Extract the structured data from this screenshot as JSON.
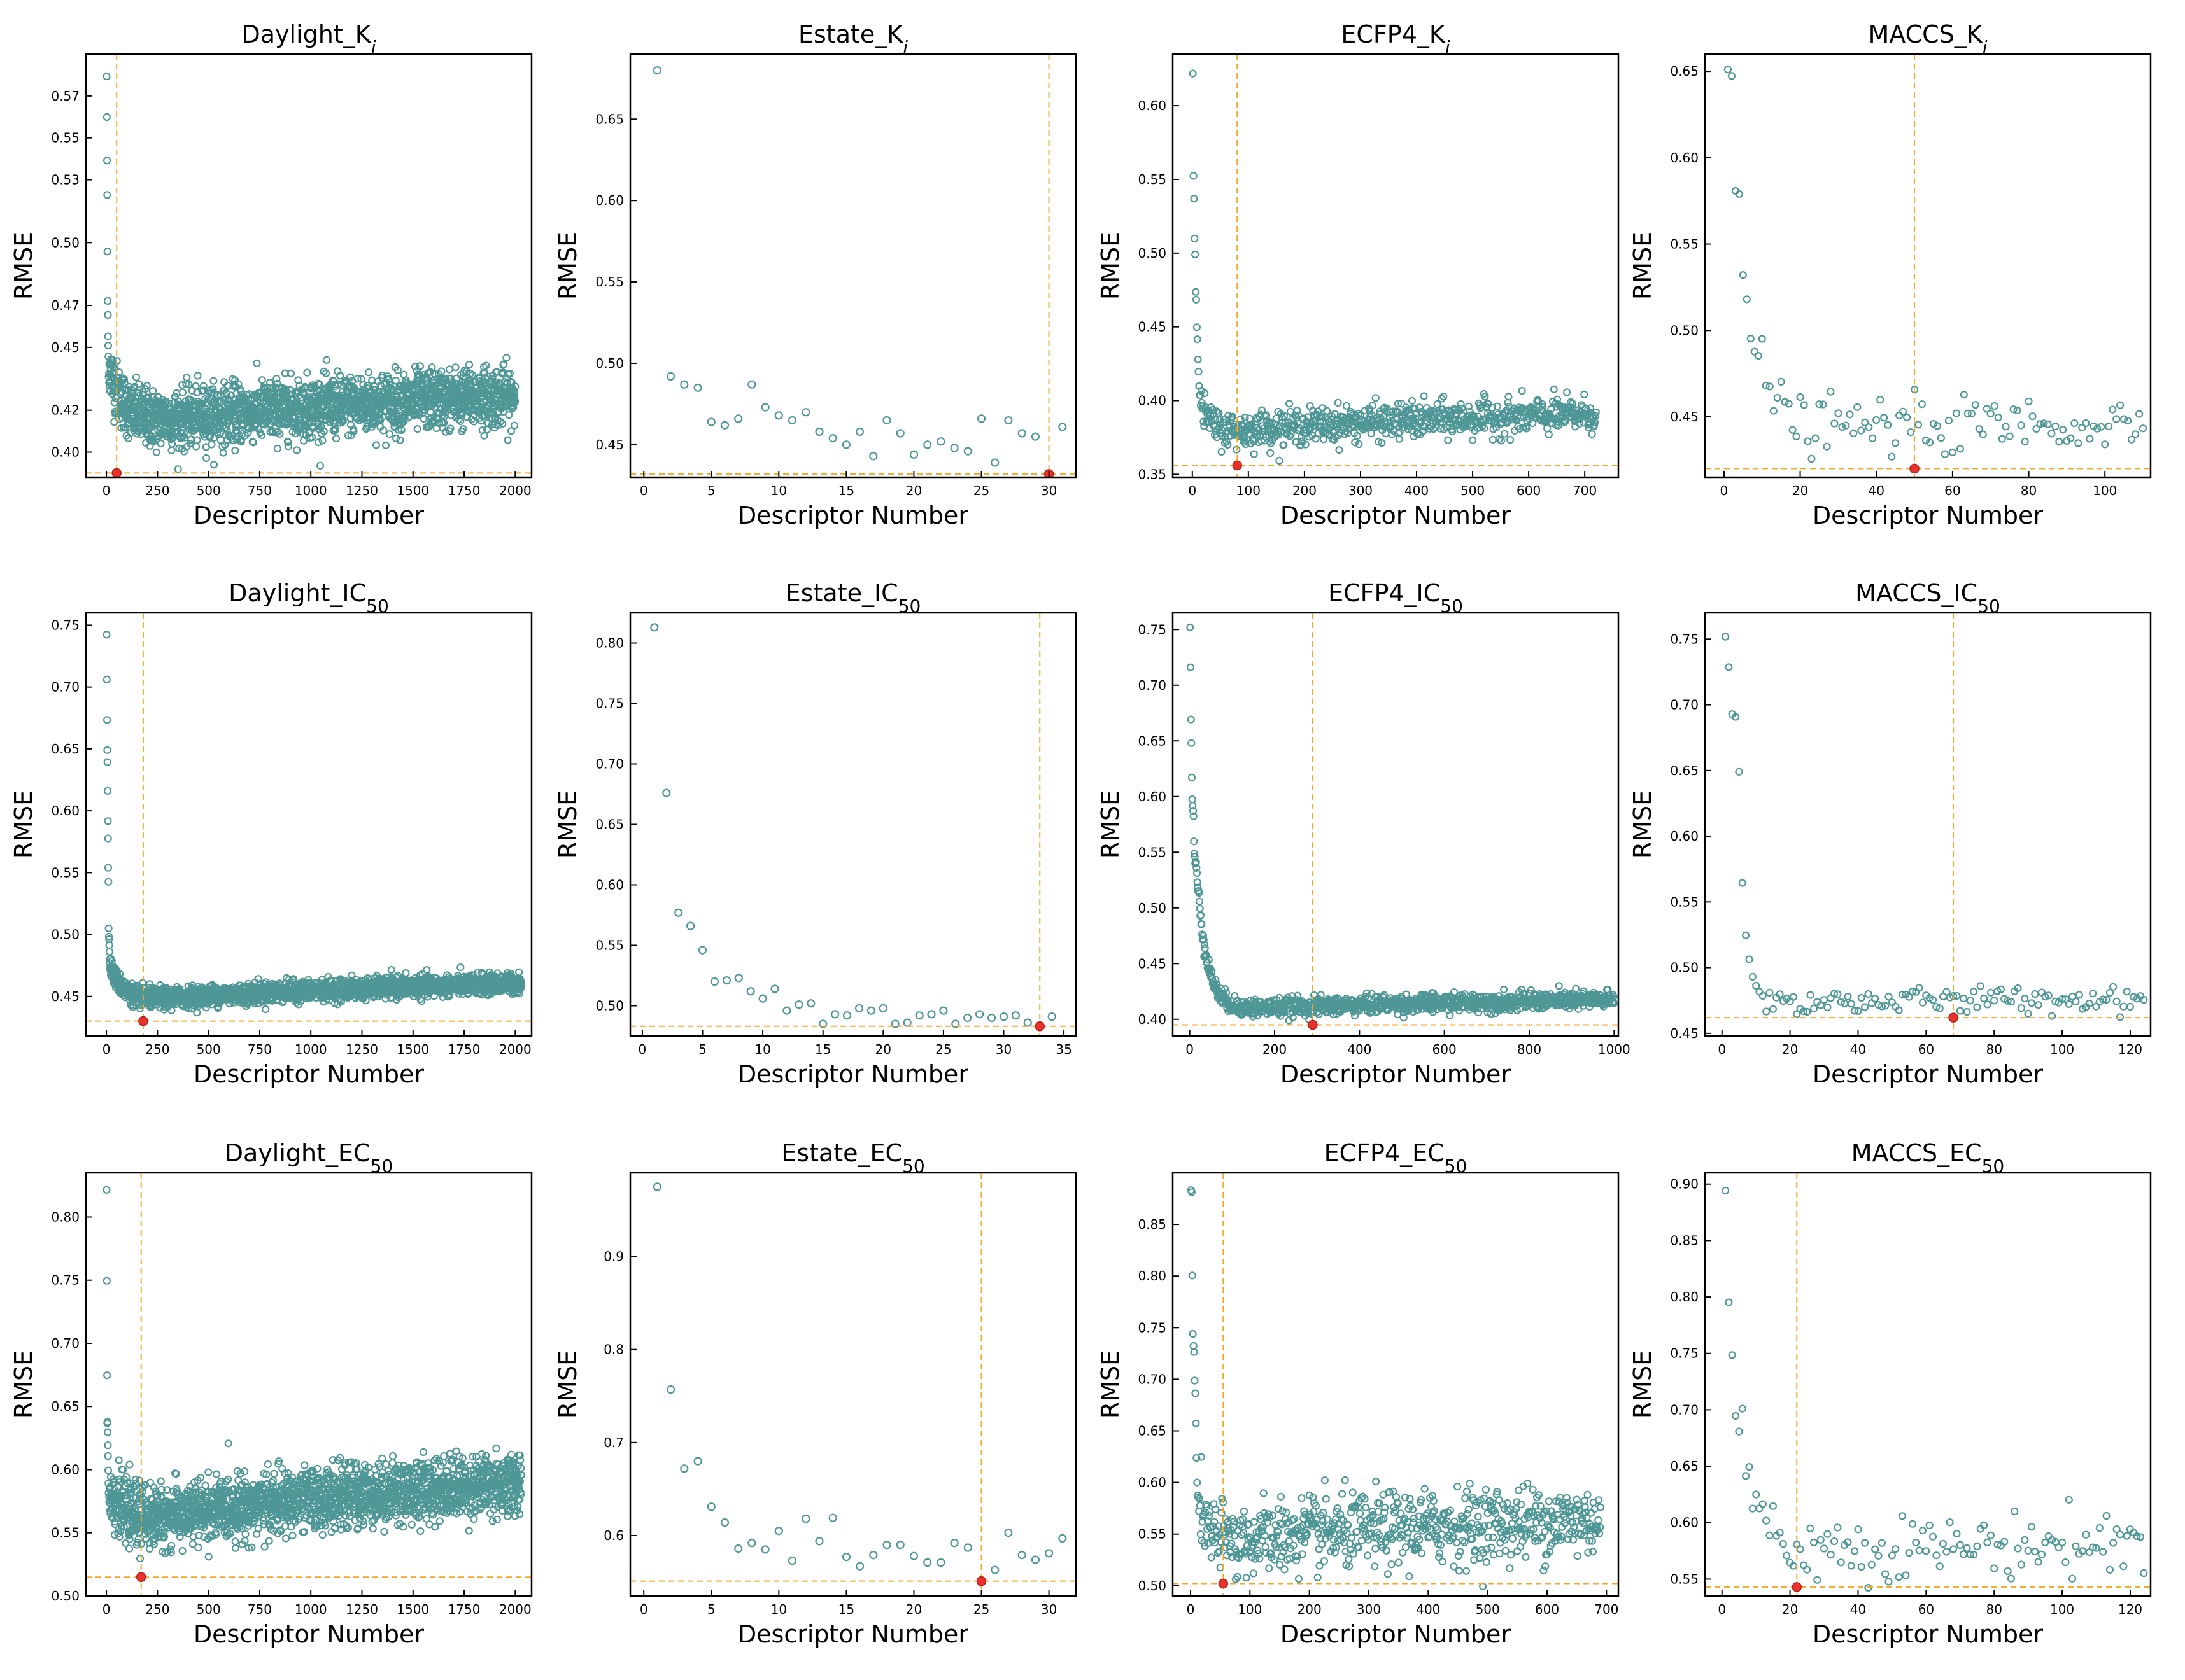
{
  "figure": {
    "background": "#ffffff"
  },
  "style": {
    "point_color": "#4f9797",
    "ref_line_color": "#f5a623",
    "best_point_color": "#e8322a"
  },
  "chart_data": [
    {
      "id": "daylight-ki",
      "type": "scatter",
      "title_main": "Daylight_K",
      "title_sub": "i",
      "title_sub_style": "italic",
      "xlabel": "Descriptor Number",
      "ylabel": "RMSE",
      "xlim": [
        -100,
        2080
      ],
      "ylim": [
        0.388,
        0.59
      ],
      "xticks": [
        0,
        250,
        500,
        750,
        1000,
        1250,
        1500,
        1750,
        2000
      ],
      "yticks": [
        0.4,
        0.42,
        0.45,
        0.47,
        0.5,
        0.53,
        0.55,
        0.57
      ],
      "ytick_labels": [
        "0.40",
        "0.42",
        "0.45",
        "0.47",
        "0.50",
        "0.53",
        "0.55",
        "0.57"
      ],
      "best": {
        "x": 50,
        "y": 0.39
      },
      "series": {
        "n": 2000,
        "xmax": 2000,
        "base": 0.408,
        "slope": 0.0135,
        "k": 0.55,
        "noise": 0.007,
        "head": [
          0.58,
          0.558,
          0.54,
          0.52,
          0.495,
          0.473,
          0.465,
          0.455,
          0.45,
          0.445,
          0.44
        ]
      }
    },
    {
      "id": "estate-ki",
      "type": "scatter",
      "title_main": "Estate_K",
      "title_sub": "i",
      "title_sub_style": "italic",
      "xlabel": "Descriptor Number",
      "ylabel": "RMSE",
      "xlim": [
        -1,
        32
      ],
      "ylim": [
        0.43,
        0.69
      ],
      "xticks": [
        0,
        5,
        10,
        15,
        20,
        25,
        30
      ],
      "yticks": [
        0.45,
        0.5,
        0.55,
        0.6,
        0.65
      ],
      "ytick_labels": [
        "0.45",
        "0.50",
        "0.55",
        "0.60",
        "0.65"
      ],
      "best": {
        "x": 30,
        "y": 0.432
      },
      "points": [
        [
          1,
          0.68
        ],
        [
          2,
          0.492
        ],
        [
          3,
          0.487
        ],
        [
          4,
          0.485
        ],
        [
          5,
          0.464
        ],
        [
          6,
          0.462
        ],
        [
          7,
          0.466
        ],
        [
          8,
          0.487
        ],
        [
          9,
          0.473
        ],
        [
          10,
          0.468
        ],
        [
          11,
          0.465
        ],
        [
          12,
          0.47
        ],
        [
          13,
          0.458
        ],
        [
          14,
          0.454
        ],
        [
          15,
          0.45
        ],
        [
          16,
          0.458
        ],
        [
          17,
          0.443
        ],
        [
          18,
          0.465
        ],
        [
          19,
          0.457
        ],
        [
          20,
          0.444
        ],
        [
          21,
          0.45
        ],
        [
          22,
          0.452
        ],
        [
          23,
          0.448
        ],
        [
          24,
          0.446
        ],
        [
          25,
          0.466
        ],
        [
          26,
          0.439
        ],
        [
          27,
          0.465
        ],
        [
          28,
          0.457
        ],
        [
          29,
          0.455
        ],
        [
          30,
          0.432
        ],
        [
          31,
          0.461
        ]
      ]
    },
    {
      "id": "ecfp4-ki",
      "type": "scatter",
      "title_main": "ECFP4_K",
      "title_sub": "i",
      "title_sub_style": "italic",
      "xlabel": "Descriptor Number",
      "ylabel": "RMSE",
      "xlim": [
        -35,
        760
      ],
      "ylim": [
        0.348,
        0.635
      ],
      "xticks": [
        0,
        100,
        200,
        300,
        400,
        500,
        600,
        700
      ],
      "yticks": [
        0.35,
        0.4,
        0.45,
        0.5,
        0.55,
        0.6
      ],
      "ytick_labels": [
        "0.35",
        "0.40",
        "0.45",
        "0.50",
        "0.55",
        "0.60"
      ],
      "best": {
        "x": 80,
        "y": 0.356
      },
      "series": {
        "n": 720,
        "xmax": 720,
        "base": 0.374,
        "slope": 0.012,
        "k": 0.9,
        "noise": 0.006,
        "head": [
          0.62,
          0.553,
          0.538,
          0.512,
          0.5,
          0.48,
          0.47,
          0.452,
          0.445,
          0.428,
          0.422,
          0.41,
          0.405,
          0.4,
          0.396
        ]
      }
    },
    {
      "id": "maccs-ki",
      "type": "scatter",
      "title_main": "MACCS_K",
      "title_sub": "i",
      "title_sub_style": "italic",
      "xlabel": "Descriptor Number",
      "ylabel": "RMSE",
      "xlim": [
        -5,
        112
      ],
      "ylim": [
        0.415,
        0.66
      ],
      "xticks": [
        0,
        20,
        40,
        60,
        80,
        100
      ],
      "yticks": [
        0.45,
        0.5,
        0.55,
        0.6,
        0.65
      ],
      "ytick_labels": [
        "0.45",
        "0.50",
        "0.55",
        "0.60",
        "0.65"
      ],
      "best": {
        "x": 50,
        "y": 0.42
      },
      "series": {
        "n": 110,
        "xmax": 110,
        "base": 0.443,
        "slope": 0.002,
        "k": 1.0,
        "noise": 0.008,
        "head": [
          0.65,
          0.647,
          0.58,
          0.578,
          0.528,
          0.518,
          0.494,
          0.486,
          0.485,
          0.496,
          0.47,
          0.47,
          0.455,
          0.458
        ]
      }
    },
    {
      "id": "daylight-ic50",
      "type": "scatter",
      "title_main": "Daylight_IC",
      "title_sub": "50",
      "title_sub_style": "normal",
      "xlabel": "Descriptor Number",
      "ylabel": "RMSE",
      "xlim": [
        -100,
        2080
      ],
      "ylim": [
        0.418,
        0.76
      ],
      "xticks": [
        0,
        250,
        500,
        750,
        1000,
        1250,
        1500,
        1750,
        2000
      ],
      "yticks": [
        0.45,
        0.5,
        0.55,
        0.6,
        0.65,
        0.7,
        0.75
      ],
      "ytick_labels": [
        "0.45",
        "0.50",
        "0.55",
        "0.60",
        "0.65",
        "0.70",
        "0.75"
      ],
      "best": {
        "x": 180,
        "y": 0.43
      },
      "series": {
        "n": 2030,
        "xmax": 2030,
        "base": 0.441,
        "slope": 0.014,
        "k": 0.65,
        "noise": 0.004,
        "head": [
          0.745,
          0.709,
          0.672,
          0.652,
          0.64,
          0.615,
          0.597,
          0.58,
          0.56,
          0.54,
          0.505,
          0.5,
          0.495,
          0.49,
          0.485,
          0.48,
          0.477,
          0.473
        ]
      }
    },
    {
      "id": "estate-ic50",
      "type": "scatter",
      "title_main": "Estate_IC",
      "title_sub": "50",
      "title_sub_style": "normal",
      "xlabel": "Descriptor Number",
      "ylabel": "RMSE",
      "xlim": [
        -1,
        36
      ],
      "ylim": [
        0.475,
        0.825
      ],
      "xticks": [
        0,
        5,
        10,
        15,
        20,
        25,
        30,
        35
      ],
      "yticks": [
        0.5,
        0.55,
        0.6,
        0.65,
        0.7,
        0.75,
        0.8
      ],
      "ytick_labels": [
        "0.50",
        "0.55",
        "0.60",
        "0.65",
        "0.70",
        "0.75",
        "0.80"
      ],
      "best": {
        "x": 33,
        "y": 0.483
      },
      "points": [
        [
          1,
          0.813
        ],
        [
          2,
          0.676
        ],
        [
          3,
          0.577
        ],
        [
          4,
          0.566
        ],
        [
          5,
          0.546
        ],
        [
          6,
          0.52
        ],
        [
          7,
          0.521
        ],
        [
          8,
          0.523
        ],
        [
          9,
          0.512
        ],
        [
          10,
          0.506
        ],
        [
          11,
          0.514
        ],
        [
          12,
          0.496
        ],
        [
          13,
          0.501
        ],
        [
          14,
          0.502
        ],
        [
          15,
          0.485
        ],
        [
          16,
          0.493
        ],
        [
          17,
          0.492
        ],
        [
          18,
          0.498
        ],
        [
          19,
          0.496
        ],
        [
          20,
          0.498
        ],
        [
          21,
          0.485
        ],
        [
          22,
          0.486
        ],
        [
          23,
          0.492
        ],
        [
          24,
          0.493
        ],
        [
          25,
          0.496
        ],
        [
          26,
          0.485
        ],
        [
          27,
          0.49
        ],
        [
          28,
          0.493
        ],
        [
          29,
          0.49
        ],
        [
          30,
          0.491
        ],
        [
          31,
          0.492
        ],
        [
          32,
          0.486
        ],
        [
          33,
          0.483
        ],
        [
          34,
          0.491
        ]
      ]
    },
    {
      "id": "ecfp4-ic50",
      "type": "scatter",
      "title_main": "ECFP4_IC",
      "title_sub": "50",
      "title_sub_style": "normal",
      "xlabel": "Descriptor Number",
      "ylabel": "RMSE",
      "xlim": [
        -40,
        1010
      ],
      "ylim": [
        0.385,
        0.765
      ],
      "xticks": [
        0,
        200,
        400,
        600,
        800,
        1000
      ],
      "yticks": [
        0.4,
        0.45,
        0.5,
        0.55,
        0.6,
        0.65,
        0.7,
        0.75
      ],
      "ytick_labels": [
        "0.40",
        "0.45",
        "0.50",
        "0.55",
        "0.60",
        "0.65",
        "0.70",
        "0.75"
      ],
      "best": {
        "x": 290,
        "y": 0.395
      },
      "series": {
        "n": 1000,
        "xmax": 1000,
        "base": 0.405,
        "slope": 0.009,
        "k": 0.85,
        "noise": 0.004,
        "head": [
          0.75,
          0.716,
          0.672,
          0.645,
          0.618,
          0.598,
          0.59,
          0.586,
          0.58,
          0.56,
          0.55,
          0.545,
          0.542,
          0.54,
          0.538
        ]
      }
    },
    {
      "id": "maccs-ic50",
      "type": "scatter",
      "title_main": "MACCS_IC",
      "title_sub": "50",
      "title_sub_style": "normal",
      "xlabel": "Descriptor Number",
      "ylabel": "RMSE",
      "xlim": [
        -5,
        126
      ],
      "ylim": [
        0.448,
        0.77
      ],
      "xticks": [
        0,
        20,
        40,
        60,
        80,
        100,
        120
      ],
      "yticks": [
        0.45,
        0.5,
        0.55,
        0.6,
        0.65,
        0.7,
        0.75
      ],
      "ytick_labels": [
        "0.45",
        "0.50",
        "0.55",
        "0.60",
        "0.65",
        "0.70",
        "0.75"
      ],
      "best": {
        "x": 68,
        "y": 0.462
      },
      "series": {
        "n": 124,
        "xmax": 124,
        "base": 0.472,
        "slope": 0.003,
        "k": 3.2,
        "noise": 0.005,
        "head": [
          0.755,
          0.728,
          0.695,
          0.69,
          0.646
        ]
      }
    },
    {
      "id": "daylight-ec50",
      "type": "scatter",
      "title_main": "Daylight_EC",
      "title_sub": "50",
      "title_sub_style": "normal",
      "xlabel": "Descriptor Number",
      "ylabel": "RMSE",
      "xlim": [
        -100,
        2080
      ],
      "ylim": [
        0.5,
        0.835
      ],
      "xticks": [
        0,
        250,
        500,
        750,
        1000,
        1250,
        1500,
        1750,
        2000
      ],
      "yticks": [
        0.5,
        0.55,
        0.6,
        0.65,
        0.7,
        0.75,
        0.8
      ],
      "ytick_labels": [
        "0.50",
        "0.55",
        "0.60",
        "0.65",
        "0.70",
        "0.75",
        "0.80"
      ],
      "best": {
        "x": 170,
        "y": 0.515
      },
      "series": {
        "n": 2030,
        "xmax": 2030,
        "base": 0.545,
        "slope": 0.032,
        "k": 0.5,
        "noise": 0.012,
        "head": [
          0.822,
          0.753,
          0.673,
          0.64,
          0.638,
          0.63,
          0.62,
          0.61,
          0.6,
          0.59,
          0.58
        ]
      }
    },
    {
      "id": "estate-ec50",
      "type": "scatter",
      "title_main": "Estate_EC",
      "title_sub": "50",
      "title_sub_style": "normal",
      "xlabel": "Descriptor Number",
      "ylabel": "RMSE",
      "xlim": [
        -1,
        32
      ],
      "ylim": [
        0.535,
        0.99
      ],
      "xticks": [
        0,
        5,
        10,
        15,
        20,
        25,
        30
      ],
      "yticks": [
        0.6,
        0.7,
        0.8,
        0.9
      ],
      "ytick_labels": [
        "0.6",
        "0.7",
        "0.8",
        "0.9"
      ],
      "best": {
        "x": 25,
        "y": 0.551
      },
      "points": [
        [
          1,
          0.975
        ],
        [
          2,
          0.757
        ],
        [
          3,
          0.672
        ],
        [
          4,
          0.68
        ],
        [
          5,
          0.631
        ],
        [
          6,
          0.614
        ],
        [
          7,
          0.586
        ],
        [
          8,
          0.592
        ],
        [
          9,
          0.585
        ],
        [
          10,
          0.605
        ],
        [
          11,
          0.573
        ],
        [
          12,
          0.618
        ],
        [
          13,
          0.594
        ],
        [
          14,
          0.619
        ],
        [
          15,
          0.577
        ],
        [
          16,
          0.567
        ],
        [
          17,
          0.579
        ],
        [
          18,
          0.59
        ],
        [
          19,
          0.59
        ],
        [
          20,
          0.578
        ],
        [
          21,
          0.571
        ],
        [
          22,
          0.571
        ],
        [
          23,
          0.592
        ],
        [
          24,
          0.587
        ],
        [
          25,
          0.551
        ],
        [
          26,
          0.563
        ],
        [
          27,
          0.603
        ],
        [
          28,
          0.579
        ],
        [
          29,
          0.574
        ],
        [
          30,
          0.581
        ],
        [
          31,
          0.597
        ]
      ]
    },
    {
      "id": "ecfp4-ec50",
      "type": "scatter",
      "title_main": "ECFP4_EC",
      "title_sub": "50",
      "title_sub_style": "normal",
      "xlabel": "Descriptor Number",
      "ylabel": "RMSE",
      "xlim": [
        -30,
        720
      ],
      "ylim": [
        0.49,
        0.9
      ],
      "xticks": [
        0,
        100,
        200,
        300,
        400,
        500,
        600,
        700
      ],
      "yticks": [
        0.5,
        0.55,
        0.6,
        0.65,
        0.7,
        0.75,
        0.8,
        0.85
      ],
      "ytick_labels": [
        "0.50",
        "0.55",
        "0.60",
        "0.65",
        "0.70",
        "0.75",
        "0.80",
        "0.85"
      ],
      "best": {
        "x": 55,
        "y": 0.502
      },
      "series": {
        "n": 690,
        "xmax": 690,
        "base": 0.533,
        "slope": 0.022,
        "k": 1.0,
        "noise": 0.018,
        "head": [
          0.88,
          0.88,
          0.803,
          0.745,
          0.73,
          0.725,
          0.7,
          0.685,
          0.655,
          0.625,
          0.6,
          0.59,
          0.585,
          0.575
        ]
      }
    },
    {
      "id": "maccs-ec50",
      "type": "scatter",
      "title_main": "MACCS_EC",
      "title_sub": "50",
      "title_sub_style": "normal",
      "xlabel": "Descriptor Number",
      "ylabel": "RMSE",
      "xlim": [
        -5,
        126
      ],
      "ylim": [
        0.535,
        0.91
      ],
      "xticks": [
        0,
        20,
        40,
        60,
        80,
        100,
        120
      ],
      "yticks": [
        0.55,
        0.6,
        0.65,
        0.7,
        0.75,
        0.8,
        0.85,
        0.9
      ],
      "ytick_labels": [
        "0.55",
        "0.60",
        "0.65",
        "0.70",
        "0.75",
        "0.80",
        "0.85",
        "0.90"
      ],
      "best": {
        "x": 22,
        "y": 0.543
      },
      "series": {
        "n": 124,
        "xmax": 124,
        "base": 0.573,
        "slope": 0.006,
        "k": 1.0,
        "noise": 0.014,
        "head": [
          0.893,
          0.795,
          0.748,
          0.693,
          0.683,
          0.702,
          0.64,
          0.646,
          0.612,
          0.623,
          0.613,
          0.62,
          0.6
        ]
      }
    }
  ]
}
